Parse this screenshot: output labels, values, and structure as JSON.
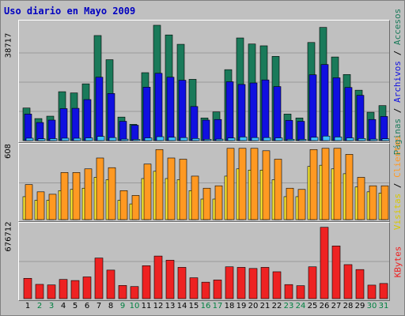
{
  "title": "Uso diario en Mayo 2009",
  "colors": {
    "frame_bg": "#c0c0c0",
    "title": "#0000c0",
    "pages": "#1a7a5a",
    "hits": "#1010e0",
    "files": "#40c0ff",
    "visits": "#ffee33",
    "clients": "#ff9922",
    "kbytes": "#ee2222",
    "weekend_day": "#008040",
    "weekday": "#000000"
  },
  "panels": {
    "top": {
      "ymax_label": "38717",
      "legend": [
        {
          "text": "Páginas",
          "color": "#1a7a5a"
        },
        {
          "text": " / ",
          "color": "#000000"
        },
        {
          "text": "Archivos",
          "color": "#1010e0"
        },
        {
          "text": " / ",
          "color": "#000000"
        },
        {
          "text": "Accesos",
          "color": "#1a7a5a"
        }
      ]
    },
    "middle": {
      "ymax_label": "608",
      "legend": [
        {
          "text": "Visitas",
          "color": "#d8c800"
        },
        {
          "text": " / ",
          "color": "#000000"
        },
        {
          "text": "Clientes",
          "color": "#ff9922"
        }
      ]
    },
    "bottom": {
      "ymax_label": "676712",
      "legend": [
        {
          "text": "KBytes",
          "color": "#ee2222"
        }
      ]
    }
  },
  "chart_data": [
    {
      "type": "bar",
      "title": "Uso diario en Mayo 2009",
      "categories": [
        "1",
        "2",
        "3",
        "4",
        "5",
        "6",
        "7",
        "8",
        "9",
        "10",
        "11",
        "12",
        "13",
        "14",
        "15",
        "16",
        "17",
        "18",
        "19",
        "20",
        "21",
        "22",
        "23",
        "24",
        "25",
        "26",
        "27",
        "28",
        "29",
        "30",
        "31"
      ],
      "weekend_days": [
        "2",
        "3",
        "9",
        "10",
        "16",
        "17",
        "23",
        "24",
        "30",
        "31"
      ],
      "ylim": [
        0,
        38717
      ],
      "series": [
        {
          "name": "Accesos",
          "values": [
            10800,
            7300,
            8100,
            16200,
            15800,
            18800,
            34800,
            26800,
            7800,
            5400,
            22500,
            38200,
            35000,
            31900,
            20300,
            7500,
            9500,
            23500,
            34000,
            32000,
            31400,
            27900,
            8800,
            7500,
            32500,
            37500,
            27700,
            21900,
            16700,
            9400,
            11600
          ]
        },
        {
          "name": "Archivos",
          "values": [
            8800,
            6000,
            6800,
            10600,
            10700,
            13600,
            21000,
            15600,
            6400,
            5100,
            17700,
            22300,
            21000,
            20000,
            11300,
            6800,
            7000,
            19500,
            18600,
            19100,
            20100,
            17900,
            6700,
            6400,
            21800,
            25200,
            20800,
            17600,
            15000,
            7000,
            8000
          ]
        },
        {
          "name": "Páginas",
          "values": [
            800,
            600,
            650,
            800,
            780,
            900,
            1400,
            1000,
            500,
            400,
            900,
            1300,
            1100,
            1000,
            700,
            450,
            500,
            850,
            1200,
            1000,
            1000,
            900,
            450,
            400,
            1100,
            1500,
            1200,
            900,
            700,
            500,
            600
          ]
        }
      ]
    },
    {
      "type": "bar",
      "categories": [
        "1",
        "2",
        "3",
        "4",
        "5",
        "6",
        "7",
        "8",
        "9",
        "10",
        "11",
        "12",
        "13",
        "14",
        "15",
        "16",
        "17",
        "18",
        "19",
        "20",
        "21",
        "22",
        "23",
        "24",
        "25",
        "26",
        "27",
        "28",
        "29",
        "30",
        "31"
      ],
      "ylim": [
        0,
        608
      ],
      "series": [
        {
          "name": "Visitas",
          "values": [
            190,
            160,
            160,
            240,
            250,
            260,
            350,
            330,
            160,
            130,
            340,
            400,
            340,
            330,
            240,
            170,
            170,
            360,
            420,
            410,
            410,
            330,
            190,
            190,
            440,
            450,
            420,
            380,
            270,
            230,
            220
          ]
        },
        {
          "name": "Clientes",
          "values": [
            290,
            230,
            210,
            390,
            390,
            420,
            510,
            430,
            240,
            200,
            460,
            580,
            510,
            500,
            360,
            260,
            280,
            590,
            590,
            590,
            570,
            500,
            260,
            250,
            580,
            590,
            590,
            540,
            350,
            280,
            280
          ]
        }
      ]
    },
    {
      "type": "bar",
      "categories": [
        "1",
        "2",
        "3",
        "4",
        "5",
        "6",
        "7",
        "8",
        "9",
        "10",
        "11",
        "12",
        "13",
        "14",
        "15",
        "16",
        "17",
        "18",
        "19",
        "20",
        "21",
        "22",
        "23",
        "24",
        "25",
        "26",
        "27",
        "28",
        "29",
        "30",
        "31"
      ],
      "ylim": [
        0,
        676712
      ],
      "series": [
        {
          "name": "KBytes",
          "values": [
            185000,
            130000,
            125000,
            175000,
            165000,
            198000,
            370000,
            260000,
            120000,
            110000,
            300000,
            388000,
            350000,
            285000,
            190000,
            150000,
            170000,
            290000,
            285000,
            275000,
            285000,
            245000,
            128000,
            118000,
            290000,
            650000,
            480000,
            310000,
            265000,
            123000,
            138000
          ]
        }
      ]
    }
  ]
}
